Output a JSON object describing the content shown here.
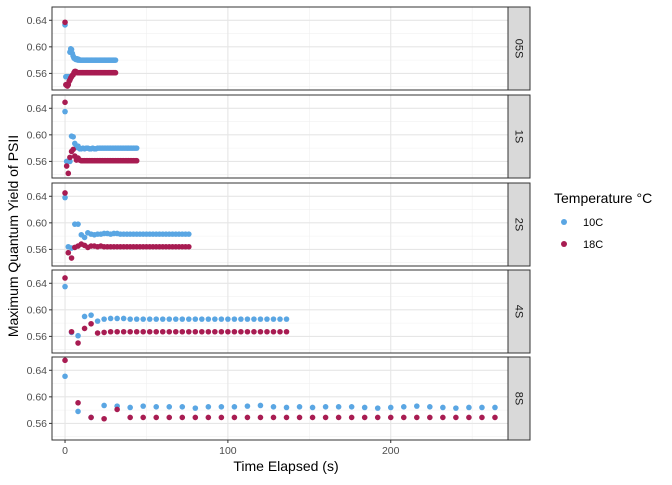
{
  "chart_data": {
    "type": "scatter",
    "facet_variable": "stimulus interval",
    "xlabel": "Time Elapsed (s)",
    "ylabel": "Maximum Quantum Yield of PSII",
    "x_ticks": [
      0,
      100,
      200
    ],
    "y_ticks": [
      0.56,
      0.6,
      0.64
    ],
    "y_tick_labels": [
      "0.56",
      "0.60",
      "0.64"
    ],
    "xlim": [
      -8,
      272
    ],
    "ylim": [
      0.535,
      0.66
    ],
    "grid": true,
    "legend": {
      "title": "Temperature °C",
      "position": "right",
      "entries": [
        {
          "label": "10C",
          "color": "#5aa6e3"
        },
        {
          "label": "18C",
          "color": "#a81c52"
        }
      ]
    },
    "panels": [
      {
        "label": "05S",
        "series": [
          {
            "name": "10C",
            "x": [
              0,
              0.5,
              1,
              1.5,
              2,
              2.5,
              3,
              3.5,
              4,
              4.5,
              5,
              5.5,
              6,
              6.5,
              7,
              7.5,
              8,
              8.5,
              9,
              9.5,
              10,
              10.5,
              11,
              11.5,
              12,
              12.5,
              13,
              13.5,
              14,
              14.5,
              15,
              15.5,
              16,
              16.5,
              17,
              17.5,
              18,
              18.5,
              19,
              19.5,
              20,
              20.5,
              21,
              21.5,
              22,
              22.5,
              23,
              23.5,
              24,
              24.5,
              25,
              25.5,
              26,
              26.5,
              27,
              27.5,
              28,
              28.5,
              29,
              29.5,
              30,
              30.5,
              31
            ],
            "y": [
              0.633,
              0.555,
              0.555,
              0.555,
              0.555,
              0.555,
              0.592,
              0.597,
              0.596,
              0.59,
              0.586,
              0.583,
              0.583,
              0.581,
              0.581,
              0.582,
              0.58,
              0.581,
              0.58,
              0.58,
              0.58,
              0.58,
              0.58,
              0.58,
              0.58,
              0.58,
              0.58,
              0.58,
              0.58,
              0.58,
              0.58,
              0.58,
              0.58,
              0.58,
              0.58,
              0.58,
              0.58,
              0.58,
              0.58,
              0.58,
              0.58,
              0.58,
              0.58,
              0.58,
              0.58,
              0.58,
              0.58,
              0.58,
              0.58,
              0.58,
              0.58,
              0.58,
              0.58,
              0.58,
              0.58,
              0.58,
              0.58,
              0.58,
              0.58,
              0.58,
              0.58,
              0.58,
              0.58
            ]
          },
          {
            "name": "18C",
            "x": [
              0,
              0.5,
              1,
              1.5,
              2,
              2.5,
              3,
              3.5,
              4,
              4.5,
              5,
              5.5,
              6,
              6.5,
              7,
              7.5,
              8,
              8.5,
              9,
              9.5,
              10,
              10.5,
              11,
              11.5,
              12,
              12.5,
              13,
              13.5,
              14,
              14.5,
              15,
              15.5,
              16,
              16.5,
              17,
              17.5,
              18,
              18.5,
              19,
              19.5,
              20,
              20.5,
              21,
              21.5,
              22,
              22.5,
              23,
              23.5,
              24,
              24.5,
              25,
              25.5,
              26,
              26.5,
              27,
              27.5,
              28,
              28.5,
              29,
              29.5,
              30,
              30.5,
              31
            ],
            "y": [
              0.637,
              0.543,
              0.542,
              0.541,
              0.543,
              0.548,
              0.55,
              0.553,
              0.555,
              0.557,
              0.558,
              0.561,
              0.563,
              0.563,
              0.562,
              0.561,
              0.561,
              0.561,
              0.561,
              0.561,
              0.561,
              0.561,
              0.561,
              0.561,
              0.561,
              0.561,
              0.561,
              0.561,
              0.561,
              0.561,
              0.561,
              0.561,
              0.561,
              0.561,
              0.561,
              0.561,
              0.561,
              0.561,
              0.561,
              0.561,
              0.561,
              0.561,
              0.561,
              0.561,
              0.561,
              0.561,
              0.561,
              0.561,
              0.561,
              0.561,
              0.561,
              0.561,
              0.561,
              0.561,
              0.561,
              0.561,
              0.561,
              0.561,
              0.561,
              0.561,
              0.561,
              0.561,
              0.561
            ]
          }
        ]
      },
      {
        "label": "1S",
        "series": [
          {
            "name": "10C",
            "x": [
              0,
              1,
              2,
              3,
              4,
              5,
              6,
              7,
              8,
              9,
              10,
              11,
              12,
              13,
              14,
              15,
              16,
              17,
              18,
              19,
              20,
              21,
              22,
              23,
              24,
              25,
              26,
              27,
              28,
              29,
              30,
              31,
              32,
              33,
              34,
              35,
              36,
              37,
              38,
              39,
              40,
              41,
              42,
              43,
              44
            ],
            "y": [
              0.635,
              0.56,
              0.56,
              0.56,
              0.598,
              0.597,
              0.587,
              0.581,
              0.583,
              0.579,
              0.579,
              0.58,
              0.579,
              0.58,
              0.58,
              0.579,
              0.579,
              0.58,
              0.579,
              0.579,
              0.58,
              0.58,
              0.58,
              0.58,
              0.58,
              0.58,
              0.58,
              0.58,
              0.58,
              0.58,
              0.58,
              0.58,
              0.58,
              0.58,
              0.58,
              0.58,
              0.58,
              0.58,
              0.58,
              0.58,
              0.58,
              0.58,
              0.58,
              0.58,
              0.58
            ]
          },
          {
            "name": "18C",
            "x": [
              0,
              1,
              2,
              3,
              4,
              5,
              6,
              7,
              8,
              9,
              10,
              11,
              12,
              13,
              14,
              15,
              16,
              17,
              18,
              19,
              20,
              21,
              22,
              23,
              24,
              25,
              26,
              27,
              28,
              29,
              30,
              31,
              32,
              33,
              34,
              35,
              36,
              37,
              38,
              39,
              40,
              41,
              42,
              43,
              44
            ],
            "y": [
              0.649,
              0.553,
              0.542,
              0.566,
              0.575,
              0.578,
              0.568,
              0.562,
              0.565,
              0.562,
              0.561,
              0.561,
              0.561,
              0.561,
              0.561,
              0.561,
              0.561,
              0.561,
              0.561,
              0.561,
              0.561,
              0.561,
              0.561,
              0.561,
              0.561,
              0.561,
              0.561,
              0.561,
              0.561,
              0.561,
              0.561,
              0.561,
              0.561,
              0.561,
              0.561,
              0.561,
              0.561,
              0.561,
              0.561,
              0.561,
              0.561,
              0.561,
              0.561,
              0.561,
              0.561
            ]
          }
        ]
      },
      {
        "label": "2S",
        "series": [
          {
            "name": "10C",
            "x": [
              0,
              2,
              4,
              6,
              8,
              10,
              12,
              14,
              16,
              18,
              20,
              22,
              24,
              26,
              28,
              30,
              32,
              34,
              36,
              38,
              40,
              42,
              44,
              46,
              48,
              50,
              52,
              54,
              56,
              58,
              60,
              62,
              64,
              66,
              68,
              70,
              72,
              74,
              76
            ],
            "y": [
              0.638,
              0.564,
              0.562,
              0.598,
              0.598,
              0.582,
              0.578,
              0.585,
              0.583,
              0.582,
              0.583,
              0.583,
              0.584,
              0.584,
              0.583,
              0.584,
              0.584,
              0.583,
              0.583,
              0.583,
              0.583,
              0.583,
              0.583,
              0.583,
              0.583,
              0.583,
              0.583,
              0.583,
              0.583,
              0.583,
              0.583,
              0.583,
              0.583,
              0.583,
              0.583,
              0.583,
              0.583,
              0.583,
              0.583
            ]
          },
          {
            "name": "18C",
            "x": [
              0,
              2,
              4,
              6,
              8,
              10,
              12,
              14,
              16,
              18,
              20,
              22,
              24,
              26,
              28,
              30,
              32,
              34,
              36,
              38,
              40,
              42,
              44,
              46,
              48,
              50,
              52,
              54,
              56,
              58,
              60,
              62,
              64,
              66,
              68,
              70,
              72,
              74,
              76
            ],
            "y": [
              0.645,
              0.555,
              0.547,
              0.563,
              0.565,
              0.568,
              0.566,
              0.563,
              0.565,
              0.565,
              0.564,
              0.565,
              0.564,
              0.564,
              0.564,
              0.564,
              0.564,
              0.564,
              0.564,
              0.564,
              0.564,
              0.564,
              0.564,
              0.564,
              0.564,
              0.564,
              0.564,
              0.564,
              0.564,
              0.564,
              0.564,
              0.564,
              0.564,
              0.564,
              0.564,
              0.564,
              0.564,
              0.564,
              0.564
            ]
          }
        ]
      },
      {
        "label": "4S",
        "series": [
          {
            "name": "10C",
            "x": [
              0,
              4,
              8,
              12,
              16,
              20,
              24,
              28,
              32,
              36,
              40,
              44,
              48,
              52,
              56,
              60,
              64,
              68,
              72,
              76,
              80,
              84,
              88,
              92,
              96,
              100,
              104,
              108,
              112,
              116,
              120,
              124,
              128,
              132,
              136
            ],
            "y": [
              0.635,
              0.566,
              0.561,
              0.59,
              0.592,
              0.583,
              0.586,
              0.587,
              0.587,
              0.587,
              0.586,
              0.586,
              0.586,
              0.586,
              0.586,
              0.586,
              0.586,
              0.586,
              0.586,
              0.586,
              0.586,
              0.586,
              0.586,
              0.586,
              0.586,
              0.586,
              0.586,
              0.586,
              0.586,
              0.586,
              0.586,
              0.586,
              0.586,
              0.586,
              0.586
            ]
          },
          {
            "name": "18C",
            "x": [
              0,
              4,
              8,
              12,
              16,
              20,
              24,
              28,
              32,
              36,
              40,
              44,
              48,
              52,
              56,
              60,
              64,
              68,
              72,
              76,
              80,
              84,
              88,
              92,
              96,
              100,
              104,
              108,
              112,
              116,
              120,
              124,
              128,
              132,
              136
            ],
            "y": [
              0.648,
              0.567,
              0.55,
              0.572,
              0.579,
              0.565,
              0.566,
              0.567,
              0.567,
              0.567,
              0.567,
              0.567,
              0.567,
              0.567,
              0.567,
              0.567,
              0.567,
              0.567,
              0.567,
              0.567,
              0.567,
              0.567,
              0.567,
              0.567,
              0.567,
              0.567,
              0.567,
              0.567,
              0.567,
              0.567,
              0.567,
              0.567,
              0.567,
              0.567,
              0.567
            ]
          }
        ]
      },
      {
        "label": "8S",
        "series": [
          {
            "name": "10C",
            "x": [
              0,
              8,
              16,
              24,
              32,
              40,
              48,
              56,
              64,
              72,
              80,
              88,
              96,
              104,
              112,
              120,
              128,
              136,
              144,
              152,
              160,
              168,
              176,
              184,
              192,
              200,
              208,
              216,
              224,
              232,
              240,
              248,
              256,
              264
            ],
            "y": [
              0.631,
              0.578,
              0.569,
              0.587,
              0.586,
              0.584,
              0.586,
              0.585,
              0.585,
              0.585,
              0.583,
              0.585,
              0.585,
              0.585,
              0.586,
              0.587,
              0.585,
              0.584,
              0.585,
              0.584,
              0.585,
              0.585,
              0.585,
              0.584,
              0.583,
              0.584,
              0.585,
              0.586,
              0.585,
              0.584,
              0.583,
              0.584,
              0.584,
              0.584
            ]
          },
          {
            "name": "18C",
            "x": [
              0,
              8,
              16,
              24,
              32,
              40,
              48,
              56,
              64,
              72,
              80,
              88,
              96,
              104,
              112,
              120,
              128,
              136,
              144,
              152,
              160,
              168,
              176,
              184,
              192,
              200,
              208,
              216,
              224,
              232,
              240,
              248,
              256,
              264
            ],
            "y": [
              0.655,
              0.591,
              0.569,
              0.567,
              0.581,
              0.569,
              0.569,
              0.569,
              0.569,
              0.569,
              0.569,
              0.569,
              0.569,
              0.569,
              0.569,
              0.569,
              0.569,
              0.569,
              0.569,
              0.569,
              0.569,
              0.569,
              0.569,
              0.569,
              0.569,
              0.569,
              0.569,
              0.569,
              0.569,
              0.569,
              0.569,
              0.569,
              0.569,
              0.569
            ]
          }
        ]
      }
    ]
  }
}
